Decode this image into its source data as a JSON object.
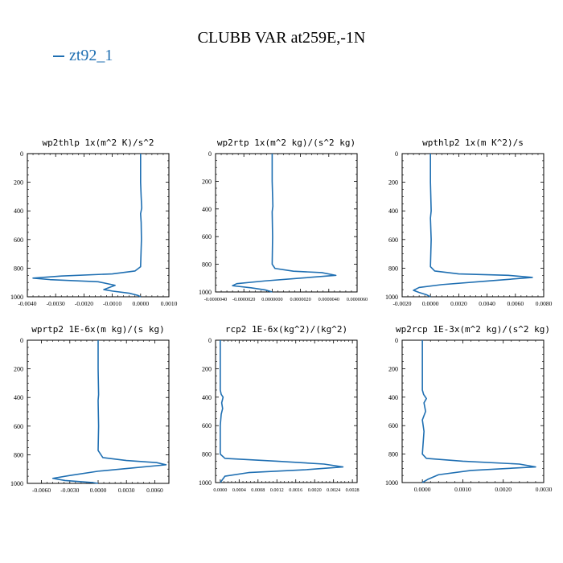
{
  "title": "CLUBB VAR at259E,-1N",
  "legend": {
    "label": "zt92_1",
    "color": "#1f6fb2"
  },
  "chart_data": [
    {
      "type": "line",
      "title": "wp2thlp   1x(m^2 K)/s^2",
      "x_ticks": [
        "-0.0040",
        "-0.0030",
        "-0.0020",
        "-0.0010",
        "0.0000",
        "0.0010"
      ],
      "y_ticks": [
        "0",
        "200",
        "400",
        "600",
        "800",
        "1000"
      ],
      "xlim": [
        -0.004,
        0.001
      ],
      "ylim": [
        1000,
        0
      ],
      "series": [
        {
          "x": [
            0.0,
            0.0,
            2e-05,
            4e-05,
            0.0,
            2e-05,
            3e-05,
            0.0,
            -0.0002,
            -0.001,
            -0.0028,
            -0.0038,
            -0.0032,
            -0.0015,
            -0.0009,
            -0.0011,
            -0.0013,
            -0.001,
            -0.0004,
            -0.0001,
            0.0
          ],
          "y": [
            0,
            200,
            300,
            380,
            420,
            480,
            600,
            790,
            820,
            840,
            855,
            870,
            880,
            895,
            920,
            935,
            950,
            960,
            975,
            990,
            1000
          ]
        }
      ]
    },
    {
      "type": "line",
      "title": "wp2rtp   1x(m^2 kg)/(s^2 kg)",
      "x_ticks": [
        "-0.0000040",
        "-0.0000020",
        "0.0000000",
        "0.0000020",
        "0.0000040",
        "0.0000060"
      ],
      "y_ticks": [
        "0",
        "200",
        "400",
        "600",
        "800",
        "1000"
      ],
      "xlim": [
        -4e-06,
        6e-06
      ],
      "ylim": [
        1000,
        0
      ],
      "series": [
        {
          "x": [
            0.0,
            0.0,
            5e-08,
            0.0,
            3e-08,
            0.0,
            2e-07,
            1.5e-06,
            3.5e-06,
            4.5e-06,
            2e-06,
            -5e-07,
            -2.5e-06,
            -2.8e-06,
            -1.5e-06,
            -5e-07,
            0.0
          ],
          "y": [
            0,
            200,
            380,
            420,
            600,
            800,
            830,
            850,
            860,
            880,
            900,
            920,
            940,
            955,
            970,
            985,
            1000
          ]
        }
      ]
    },
    {
      "type": "line",
      "title": "wpthlp2   1x(m K^2)/s",
      "x_ticks": [
        "-0.0020",
        "0.0000",
        "0.0020",
        "0.0040",
        "0.0060",
        "0.0080"
      ],
      "y_ticks": [
        "0",
        "200",
        "400",
        "600",
        "800",
        "1000"
      ],
      "xlim": [
        -0.002,
        0.008
      ],
      "ylim": [
        1000,
        0
      ],
      "series": [
        {
          "x": [
            0.0,
            0.0,
            5e-05,
            0.0,
            5e-05,
            0.0,
            0.0003,
            0.002,
            0.0055,
            0.0072,
            0.004,
            0.0008,
            -0.0008,
            -0.0012,
            -0.0008,
            -0.0003,
            0.0
          ],
          "y": [
            0,
            200,
            400,
            450,
            600,
            790,
            820,
            840,
            850,
            865,
            890,
            915,
            935,
            955,
            970,
            985,
            1000
          ]
        }
      ]
    },
    {
      "type": "line",
      "title": "wprtp2   1E-6x(m kg)/(s kg)",
      "x_ticks": [
        "-0.0060",
        "-0.0030",
        "0.0000",
        "0.0030",
        "0.0060"
      ],
      "y_ticks": [
        "0",
        "200",
        "400",
        "600",
        "800",
        "1000"
      ],
      "xlim": [
        -0.0075,
        0.0075
      ],
      "ylim": [
        1000,
        0
      ],
      "series": [
        {
          "x": [
            0.0,
            0.0,
            5e-05,
            0.0,
            5e-05,
            0.0,
            0.0005,
            0.003,
            0.0062,
            0.0072,
            0.004,
            0.0,
            -0.003,
            -0.0048,
            -0.0035,
            -0.0015,
            -0.0005,
            0.0
          ],
          "y": [
            0,
            200,
            380,
            420,
            600,
            770,
            820,
            840,
            855,
            870,
            890,
            915,
            945,
            965,
            980,
            990,
            995,
            1000
          ]
        }
      ]
    },
    {
      "type": "line",
      "title": "rcp2   1E-6x(kg^2)/(kg^2)",
      "x_ticks": [
        "0.0000",
        "0.0004",
        "0.0008",
        "0.0012",
        "0.0016",
        "0.0020",
        "0.0024",
        "0.0028"
      ],
      "y_ticks": [
        "0",
        "200",
        "400",
        "600",
        "800",
        "1000"
      ],
      "xlim": [
        -0.0001,
        0.0029
      ],
      "ylim": [
        1000,
        0
      ],
      "series": [
        {
          "x": [
            0.0,
            0.0,
            2e-05,
            6e-05,
            3e-05,
            5e-05,
            2e-05,
            0.0,
            0.0,
            0.0001,
            0.0012,
            0.0022,
            0.0026,
            0.0018,
            0.0006,
            0.0001,
            0.0
          ],
          "y": [
            0,
            350,
            380,
            400,
            440,
            480,
            520,
            600,
            800,
            830,
            850,
            870,
            890,
            910,
            930,
            955,
            1000
          ]
        }
      ]
    },
    {
      "type": "line",
      "title": "wp2rcp   1E-3x(m^2 kg)/(s^2 kg)",
      "x_ticks": [
        "0.0000",
        "0.0010",
        "0.0020",
        "0.0030"
      ],
      "y_ticks": [
        "0",
        "200",
        "400",
        "600",
        "800",
        "1000"
      ],
      "xlim": [
        -0.0005,
        0.003
      ],
      "ylim": [
        1000,
        0
      ],
      "series": [
        {
          "x": [
            0.0,
            0.0,
            3e-05,
            0.0001,
            4e-05,
            8e-05,
            0.0,
            4e-05,
            0.0,
            0.0001,
            0.001,
            0.0024,
            0.0028,
            0.0012,
            0.0004,
            0.00015,
            0.0
          ],
          "y": [
            0,
            350,
            380,
            410,
            440,
            500,
            560,
            640,
            800,
            830,
            850,
            870,
            890,
            915,
            945,
            975,
            1000
          ]
        }
      ]
    }
  ]
}
